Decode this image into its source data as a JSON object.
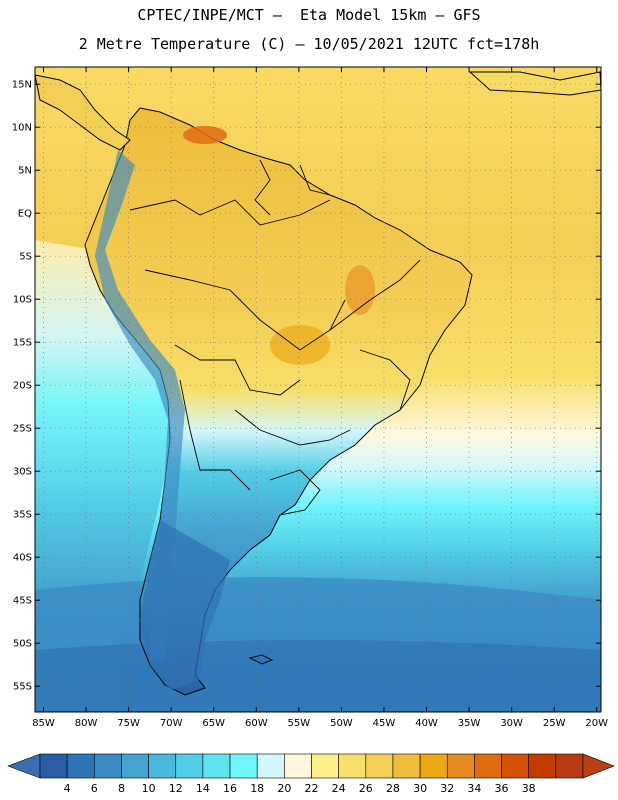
{
  "header": {
    "line1": "CPTEC/INPE/MCT –  Eta Model 15km – GFS",
    "line2": "2 Metre Temperature (C) – 10/05/2021 12UTC fct=178h"
  },
  "map": {
    "lat_labels": [
      "15N",
      "10N",
      "5N",
      "EQ",
      "5S",
      "10S",
      "15S",
      "20S",
      "25S",
      "30S",
      "35S",
      "40S",
      "45S",
      "50S",
      "55S"
    ],
    "lat_values": [
      15,
      10,
      5,
      0,
      -5,
      -10,
      -15,
      -20,
      -25,
      -30,
      -35,
      -40,
      -45,
      -50,
      -55
    ],
    "lon_labels": [
      "85W",
      "80W",
      "75W",
      "70W",
      "65W",
      "60W",
      "55W",
      "50W",
      "45W",
      "40W",
      "35W",
      "30W",
      "25W",
      "20W"
    ],
    "lon_values": [
      -85,
      -80,
      -75,
      -70,
      -65,
      -60,
      -55,
      -50,
      -45,
      -40,
      -35,
      -30,
      -25,
      -20
    ],
    "extent": {
      "lon_min": -86,
      "lon_max": -19.5,
      "lat_min": -58,
      "lat_max": 17
    }
  },
  "colorbar": {
    "labels": [
      "4",
      "6",
      "8",
      "10",
      "12",
      "14",
      "16",
      "18",
      "20",
      "22",
      "24",
      "26",
      "28",
      "30",
      "32",
      "34",
      "36",
      "38"
    ],
    "colors": [
      "#2a5fa5",
      "#2f74b4",
      "#3a8bc4",
      "#45a3d0",
      "#4cb8dc",
      "#52cde6",
      "#5ee3ef",
      "#6ff6fb",
      "#d4f7fb",
      "#fef8df",
      "#fdf08a",
      "#f8df6a",
      "#f3cf55",
      "#eebd3c",
      "#eba814",
      "#e58a20",
      "#e06c10",
      "#d65208",
      "#c23c02",
      "#b83a10"
    ],
    "low_arrow_color": "#3a70b2",
    "high_arrow_color": "#b9400f"
  },
  "colors": {
    "ocean_warm": "#f6ca47",
    "ocean_cool": "#5ee3ef",
    "ocean_cold": "#3a8bc4",
    "land_hot": "#eebd3c",
    "andes_cold": "#2a5fa5"
  }
}
